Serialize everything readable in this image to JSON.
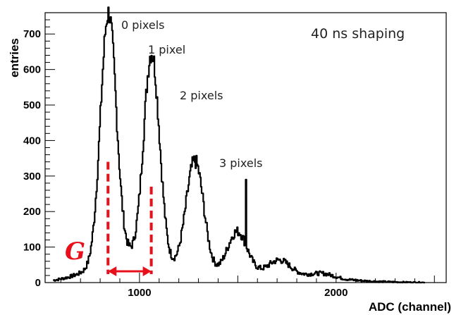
{
  "chart_data": {
    "type": "histogram",
    "title": "",
    "xlabel": "ADC (channel)",
    "ylabel": "entries",
    "xlim": [
      520,
      2560
    ],
    "ylim": [
      0,
      760
    ],
    "x_ticks": [
      1000,
      2000
    ],
    "y_ticks": [
      0,
      100,
      200,
      300,
      400,
      500,
      600,
      700
    ],
    "grid": false,
    "legend": "none",
    "series_color": "#000000",
    "annotation_color": "#e8101a",
    "peaks": [
      {
        "label": "0 pixels",
        "mean": 840,
        "amplitude": 700,
        "sigma": 40
      },
      {
        "label": "1 pixel",
        "mean": 1060,
        "amplitude": 585,
        "sigma": 40
      },
      {
        "label": "2 pixels",
        "mean": 1280,
        "amplitude": 315,
        "sigma": 45
      },
      {
        "label": "3 pixels",
        "mean": 1495,
        "amplitude": 120,
        "sigma": 50
      },
      {
        "label": "",
        "mean": 1710,
        "amplitude": 40,
        "sigma": 55
      },
      {
        "label": "",
        "mean": 1930,
        "amplitude": 12,
        "sigma": 60
      }
    ],
    "spike": {
      "x": 1540,
      "y": 290
    },
    "annotations": {
      "shaping": "40 ns shaping",
      "gain_symbol": "G",
      "gain_from_x": 840,
      "gain_to_x": 1060
    }
  }
}
